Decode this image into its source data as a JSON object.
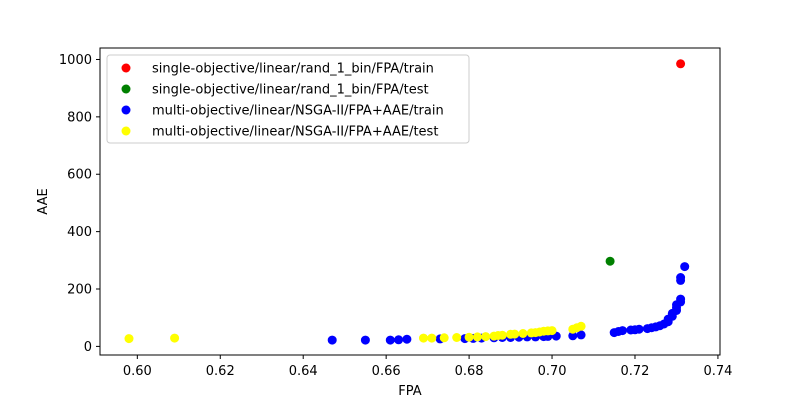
{
  "chart_data": {
    "type": "scatter",
    "title": "",
    "xlabel": "FPA",
    "ylabel": "AAE",
    "xlim": [
      0.591,
      0.7405
    ],
    "ylim": [
      -30,
      1040
    ],
    "xticks": [
      0.6,
      0.62,
      0.64,
      0.66,
      0.68,
      0.7,
      0.72,
      0.74
    ],
    "xtick_labels": [
      "0.60",
      "0.62",
      "0.64",
      "0.66",
      "0.68",
      "0.70",
      "0.72",
      "0.74"
    ],
    "yticks": [
      0,
      200,
      400,
      600,
      800,
      1000
    ],
    "ytick_labels": [
      "0",
      "200",
      "400",
      "600",
      "800",
      "1000"
    ],
    "grid": false,
    "legend_position": "top-left",
    "series": [
      {
        "name": "single-objective/linear/rand_1_bin/FPA/train",
        "color": "#ff0000",
        "points": [
          [
            0.731,
            985
          ]
        ]
      },
      {
        "name": "single-objective/linear/rand_1_bin/FPA/test",
        "color": "#008000",
        "points": [
          [
            0.714,
            297
          ]
        ]
      },
      {
        "name": "multi-objective/linear/NSGA-II/FPA+AAE/train",
        "color": "#0000ff",
        "points": [
          [
            0.647,
            22
          ],
          [
            0.655,
            22
          ],
          [
            0.661,
            22
          ],
          [
            0.663,
            23
          ],
          [
            0.665,
            25
          ],
          [
            0.673,
            26
          ],
          [
            0.679,
            27
          ],
          [
            0.681,
            28
          ],
          [
            0.683,
            29
          ],
          [
            0.686,
            30
          ],
          [
            0.688,
            31
          ],
          [
            0.69,
            31
          ],
          [
            0.692,
            32
          ],
          [
            0.694,
            33
          ],
          [
            0.696,
            33
          ],
          [
            0.698,
            34
          ],
          [
            0.699,
            35
          ],
          [
            0.701,
            36
          ],
          [
            0.705,
            37
          ],
          [
            0.707,
            40
          ],
          [
            0.715,
            48
          ],
          [
            0.716,
            52
          ],
          [
            0.717,
            55
          ],
          [
            0.719,
            57
          ],
          [
            0.72,
            58
          ],
          [
            0.721,
            60
          ],
          [
            0.723,
            62
          ],
          [
            0.724,
            65
          ],
          [
            0.725,
            68
          ],
          [
            0.726,
            72
          ],
          [
            0.727,
            78
          ],
          [
            0.728,
            86
          ],
          [
            0.728,
            95
          ],
          [
            0.729,
            105
          ],
          [
            0.729,
            115
          ],
          [
            0.73,
            125
          ],
          [
            0.73,
            135
          ],
          [
            0.73,
            145
          ],
          [
            0.731,
            155
          ],
          [
            0.731,
            165
          ],
          [
            0.731,
            230
          ],
          [
            0.731,
            240
          ],
          [
            0.732,
            278
          ]
        ]
      },
      {
        "name": "multi-objective/linear/NSGA-II/FPA+AAE/test",
        "color": "#ffff00",
        "points": [
          [
            0.598,
            27
          ],
          [
            0.609,
            29
          ],
          [
            0.669,
            29
          ],
          [
            0.671,
            29
          ],
          [
            0.674,
            30
          ],
          [
            0.677,
            31
          ],
          [
            0.68,
            32
          ],
          [
            0.682,
            33
          ],
          [
            0.684,
            34
          ],
          [
            0.686,
            36
          ],
          [
            0.687,
            38
          ],
          [
            0.688,
            39
          ],
          [
            0.69,
            42
          ],
          [
            0.691,
            43
          ],
          [
            0.693,
            45
          ],
          [
            0.695,
            47
          ],
          [
            0.696,
            48
          ],
          [
            0.697,
            50
          ],
          [
            0.698,
            53
          ],
          [
            0.699,
            54
          ],
          [
            0.7,
            55
          ],
          [
            0.705,
            60
          ],
          [
            0.706,
            65
          ],
          [
            0.707,
            70
          ]
        ]
      }
    ]
  }
}
